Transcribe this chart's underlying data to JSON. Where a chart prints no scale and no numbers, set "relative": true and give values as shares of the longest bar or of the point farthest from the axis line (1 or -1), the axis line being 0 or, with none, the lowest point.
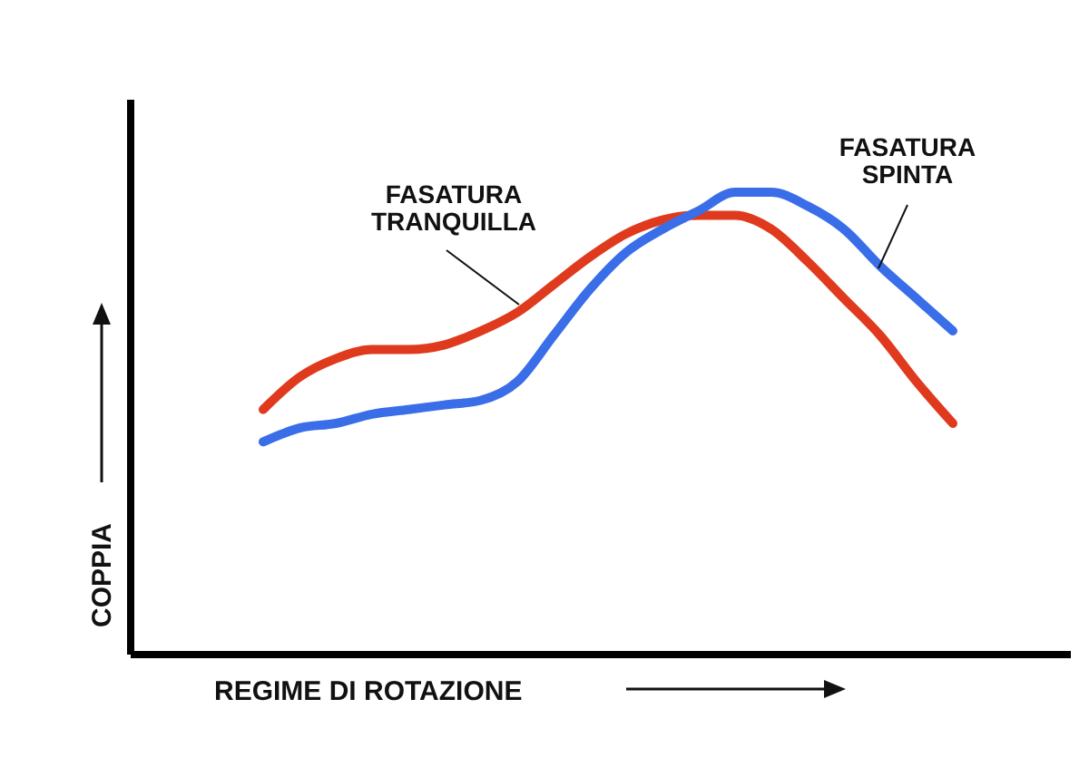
{
  "chart_data": {
    "type": "line",
    "relative": true,
    "xlabel": "REGIME DI ROTAZIONE",
    "ylabel": "COPPIA",
    "categories": [
      null,
      null,
      null,
      null,
      null,
      null,
      null,
      null,
      null,
      null,
      null,
      null,
      null,
      null,
      null,
      null,
      null,
      null,
      null,
      null
    ],
    "series": [
      {
        "name": "FASATURA\nTRANQUILLA",
        "color": "#e03a1e",
        "values": [
          0.53,
          0.6,
          0.64,
          0.66,
          0.66,
          0.67,
          0.7,
          0.74,
          0.8,
          0.86,
          0.91,
          0.94,
          0.95,
          0.95,
          0.92,
          0.85,
          0.77,
          0.69,
          0.59,
          0.5
        ]
      },
      {
        "name": "FASATURA\nSPINTA",
        "color": "#3a6ee8",
        "values": [
          0.46,
          0.49,
          0.5,
          0.52,
          0.53,
          0.54,
          0.55,
          0.59,
          0.69,
          0.79,
          0.87,
          0.92,
          0.96,
          1.0,
          1.0,
          0.97,
          0.92,
          0.84,
          0.77,
          0.7
        ]
      }
    ],
    "grid": false,
    "legend": false,
    "marker": "none",
    "line_style": "solid"
  }
}
